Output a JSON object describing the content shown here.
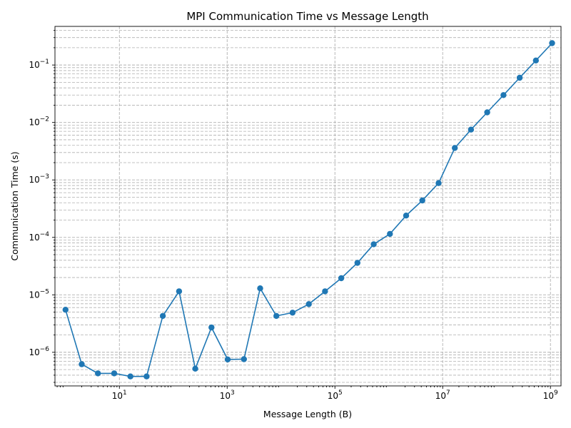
{
  "chart_data": {
    "type": "line",
    "title": "MPI Communication Time vs Message Length",
    "xlabel": "Message Length (B)",
    "ylabel": "Communication Time (s)",
    "xscale": "log",
    "yscale": "log",
    "xlim": [
      0.637,
      1570000000.0
    ],
    "ylim": [
      2.6e-07,
      0.47
    ],
    "grid": "both",
    "marker": "circle",
    "color": "#1f77b4",
    "x_ticks": [
      {
        "base": "10",
        "exp": "1",
        "value": 10
      },
      {
        "base": "10",
        "exp": "3",
        "value": 1000
      },
      {
        "base": "10",
        "exp": "5",
        "value": 100000
      },
      {
        "base": "10",
        "exp": "7",
        "value": 10000000
      },
      {
        "base": "10",
        "exp": "9",
        "value": 1000000000
      }
    ],
    "y_ticks": [
      {
        "base": "10",
        "exp": "−6",
        "value": 1e-06
      },
      {
        "base": "10",
        "exp": "−5",
        "value": 1e-05
      },
      {
        "base": "10",
        "exp": "−4",
        "value": 0.0001
      },
      {
        "base": "10",
        "exp": "−3",
        "value": 0.001
      },
      {
        "base": "10",
        "exp": "−2",
        "value": 0.01
      },
      {
        "base": "10",
        "exp": "−1",
        "value": 0.1
      }
    ],
    "x": [
      1,
      2,
      4,
      8,
      16,
      32,
      64,
      128,
      256,
      512,
      1024,
      2048,
      4096,
      8192,
      16384,
      32768,
      65536,
      131072,
      262144,
      524288,
      1048576,
      2097152,
      4194304,
      8388608,
      16777216,
      33554432,
      67108864,
      134217728,
      268435456,
      536870912,
      1073741824
    ],
    "y": [
      5.5e-06,
      6.2e-07,
      4.3e-07,
      4.3e-07,
      3.8e-07,
      3.8e-07,
      4.3e-06,
      1.15e-05,
      5.2e-07,
      2.7e-06,
      7.5e-07,
      7.6e-07,
      1.3e-05,
      4.3e-06,
      4.9e-06,
      6.9e-06,
      1.15e-05,
      1.95e-05,
      3.6e-05,
      7.6e-05,
      0.000115,
      0.00024,
      0.00044,
      0.00088,
      0.0036,
      0.0075,
      0.015,
      0.03,
      0.06,
      0.12,
      0.24
    ]
  }
}
